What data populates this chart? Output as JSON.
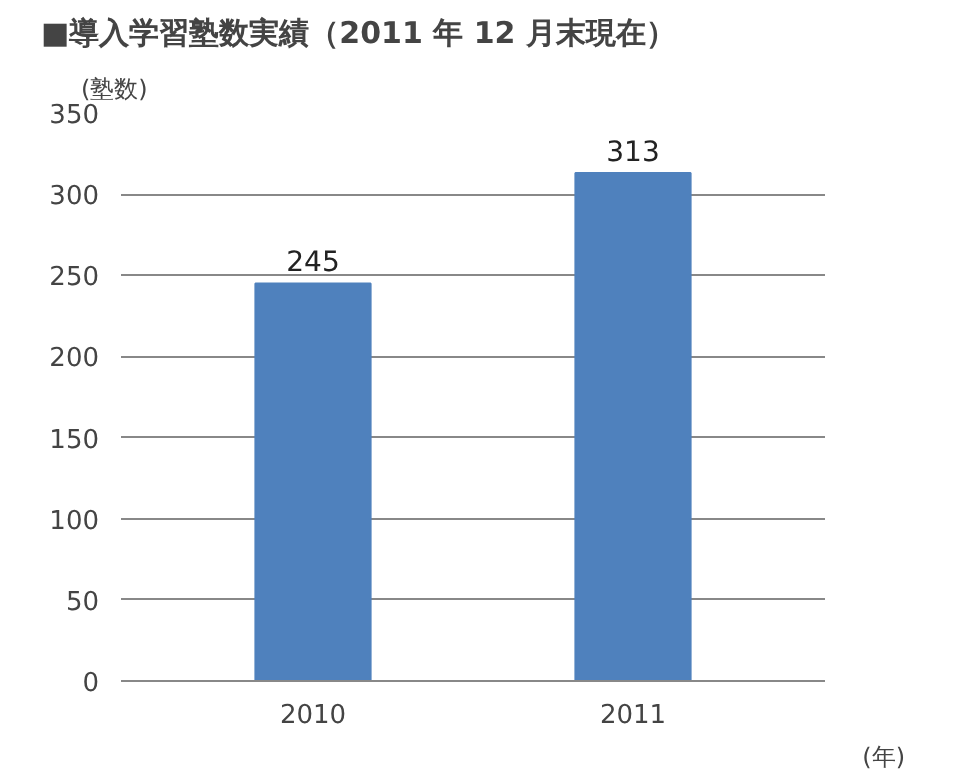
{
  "chart_data": {
    "type": "bar",
    "title": "■導入学習塾数実績（2011 年 12 月末現在）",
    "ylabel": "(塾数)",
    "xlabel": "(年)",
    "categories": [
      "2010",
      "2011"
    ],
    "values": [
      245,
      313
    ],
    "color": "#4f81bd",
    "ylim": [
      0,
      350
    ],
    "yticks": [
      0,
      50,
      100,
      150,
      200,
      250,
      300,
      350
    ],
    "grid": "y",
    "data_labels": true
  }
}
